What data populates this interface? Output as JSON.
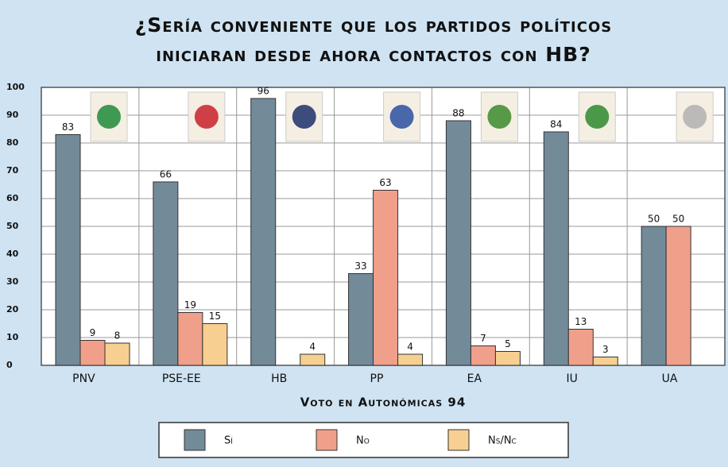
{
  "chart_data": {
    "type": "bar",
    "title_lines": [
      "¿Sería conveniente que los partidos políticos",
      "iniciaran desde ahora contactos con HB?"
    ],
    "x_label": "Voto en Autonómicas 94",
    "categories": [
      "PNV",
      "PSE-EE",
      "HB",
      "PP",
      "EA",
      "IU",
      "UA"
    ],
    "series": [
      {
        "name": "Sí",
        "color": "#738a99",
        "values": [
          83,
          66,
          96,
          33,
          88,
          84,
          50
        ]
      },
      {
        "name": "No",
        "color": "#f0a08a",
        "values": [
          9,
          19,
          null,
          63,
          7,
          13,
          50
        ]
      },
      {
        "name": "Ns/Nc",
        "color": "#f7cf90",
        "values": [
          8,
          15,
          4,
          4,
          5,
          3,
          null
        ]
      }
    ],
    "ylim": [
      0,
      100
    ],
    "yticks": [
      0,
      10,
      20,
      30,
      40,
      50,
      60,
      70,
      80,
      90,
      100
    ],
    "grid": true,
    "legend": "bottom"
  }
}
